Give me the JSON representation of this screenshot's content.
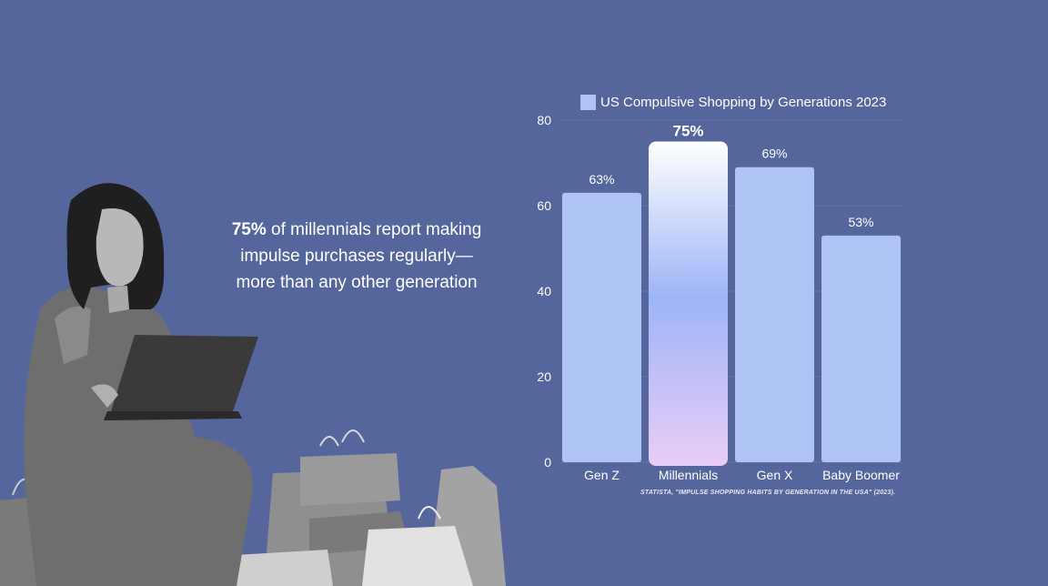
{
  "callout": {
    "emphasis": "75%",
    "text_line1": " of millennials report making",
    "text_line2": "impulse purchases regularly—",
    "text_line3": "more than any other generation"
  },
  "source": "STATISTA, \"IMPULSE SHOPPING HABITS BY GENERATION IN THE USA\" (2023).",
  "chart_data": {
    "type": "bar",
    "title": "",
    "xlabel": "",
    "ylabel": "",
    "categories": [
      "Gen Z",
      "Millennials",
      "Gen X",
      "Baby Boomer"
    ],
    "series": [
      {
        "name": "US Compulsive Shopping by Generations 2023",
        "values": [
          63,
          75,
          69,
          53
        ]
      }
    ],
    "data_labels": [
      "63%",
      "75%",
      "69%",
      "53%"
    ],
    "highlight_index": 1,
    "ylim": [
      0,
      80
    ],
    "yticks": [
      0,
      20,
      40,
      60,
      80
    ],
    "grid": true,
    "legend_position": "top",
    "colors": {
      "bar": "#aec4f5",
      "highlight_top": "#ffffff",
      "highlight_mid": "#9db5f7",
      "highlight_bottom": "#e9cdf7",
      "grid": "#6677aa"
    }
  }
}
